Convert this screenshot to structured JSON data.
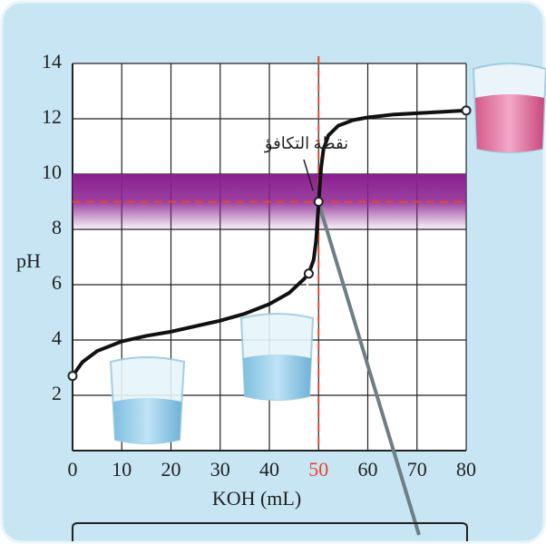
{
  "chart_data": {
    "type": "line",
    "x": [
      0,
      2,
      5,
      10,
      15,
      20,
      25,
      30,
      35,
      40,
      44,
      47,
      48,
      49,
      49.5,
      50,
      50.5,
      51,
      52,
      54,
      57,
      60,
      65,
      70,
      75,
      80
    ],
    "series": [
      {
        "color": "#111111",
        "values": [
          2.7,
          3.2,
          3.6,
          3.95,
          4.15,
          4.3,
          4.5,
          4.7,
          4.95,
          5.3,
          5.7,
          6.2,
          6.4,
          6.9,
          7.6,
          8.9,
          10.2,
          10.9,
          11.4,
          11.75,
          11.95,
          12.05,
          12.15,
          12.2,
          12.25,
          12.3
        ]
      }
    ],
    "xlabel": "KOH (mL)",
    "ylabel": "pH",
    "xlim": [
      0,
      80
    ],
    "ylim": [
      0,
      14
    ],
    "xticks": [
      0,
      10,
      20,
      30,
      40,
      50,
      60,
      70,
      80
    ],
    "yticks": [
      2,
      4,
      6,
      8,
      10,
      12,
      14
    ],
    "grid": true,
    "markers": [
      0,
      48,
      80
    ],
    "indicator_band": {
      "range": [
        8,
        10
      ],
      "color": "#8a1f8f"
    },
    "equivalence_point": {
      "label": "نقطة التكافؤ",
      "x": 50,
      "y": 9,
      "color": "#e8452a"
    }
  }
}
